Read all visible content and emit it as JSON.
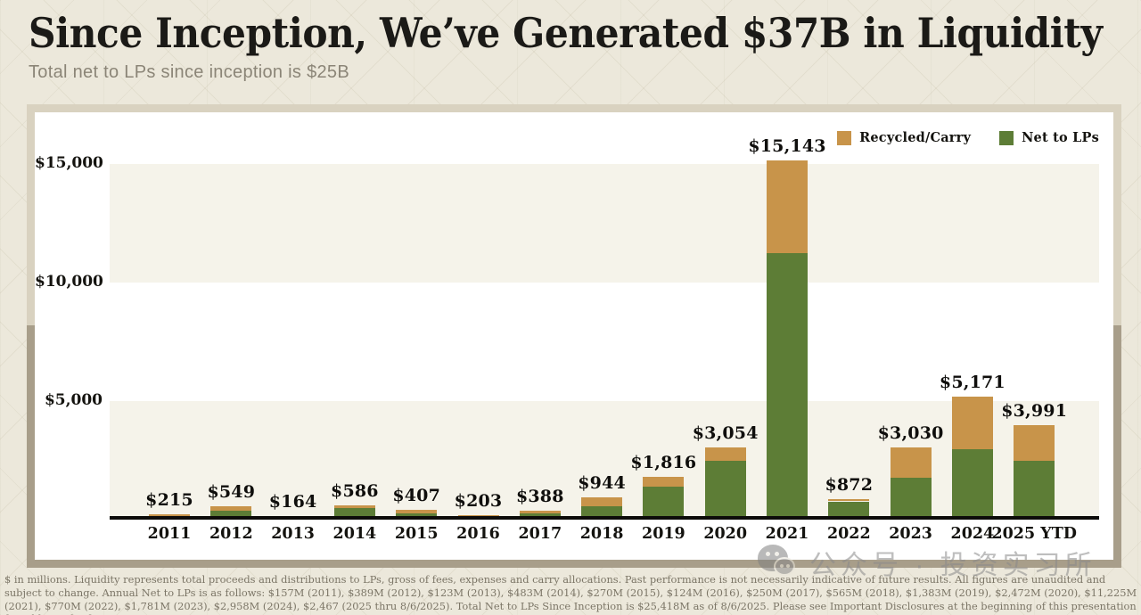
{
  "header": {
    "title": "Since Inception, We’ve Generated $37B in Liquidity",
    "subtitle": "Total net to LPs since inception is $25B"
  },
  "legend": [
    {
      "label": "Recycled/Carry",
      "color": "#c8944a"
    },
    {
      "label": "Net to LPs",
      "color": "#5d7d36"
    }
  ],
  "chart_data": {
    "type": "bar",
    "stacked": true,
    "unit": "$ in millions",
    "categories": [
      "2011",
      "2012",
      "2013",
      "2014",
      "2015",
      "2016",
      "2017",
      "2018",
      "2019",
      "2020",
      "2021",
      "2022",
      "2023",
      "2024",
      "2025 YTD"
    ],
    "series": [
      {
        "name": "Net to LPs",
        "color": "#5d7d36",
        "values": [
          157,
          389,
          123,
          483,
          270,
          124,
          250,
          565,
          1383,
          2472,
          11225,
          770,
          1781,
          2958,
          2467
        ]
      },
      {
        "name": "Recycled/Carry",
        "color": "#c8944a",
        "values": [
          58,
          160,
          41,
          103,
          137,
          79,
          138,
          379,
          433,
          582,
          3918,
          102,
          1249,
          2213,
          1524
        ]
      }
    ],
    "totals": [
      215,
      549,
      164,
      586,
      407,
      203,
      388,
      944,
      1816,
      3054,
      15143,
      872,
      3030,
      5171,
      3991
    ],
    "total_labels": [
      "$215",
      "$549",
      "$164",
      "$586",
      "$407",
      "$203",
      "$388",
      "$944",
      "$1,816",
      "$3,054",
      "$15,143",
      "$872",
      "$3,030",
      "$5,171",
      "$3,991"
    ],
    "y_ticks": [
      {
        "label": "$15,000",
        "value": 15000
      },
      {
        "label": "$10,000",
        "value": 10000
      },
      {
        "label": "$5,000",
        "value": 5000
      }
    ],
    "ylim": [
      0,
      15750
    ],
    "grid": "banded",
    "legend_position": "top-right",
    "title": "Since Inception, We’ve Generated $37B in Liquidity",
    "xlabel": "",
    "ylabel": ""
  },
  "footnote": "$ in millions. Liquidity represents total proceeds and distributions to LPs, gross of fees, expenses and carry allocations. Past performance is not necessarily indicative of future results. All figures are unaudited and subject to change. Annual Net to LPs is as follows: $157M (2011), $389M (2012), $123M (2013), $483M (2014), $270M (2015), $124M (2016), $250M (2017), $565M (2018), $1,383M (2019), $2,472M (2020), $11,225M (2021), $770M (2022), $1,781M (2023), $2,958M (2024), $2,467 (2025 thru 8/6/2025). Total Net to LPs Since Inception is $25,418M as of 8/6/2025. Please see Important Disclosures at the beginning of this presentation for additional information.",
  "watermark": {
    "text": "公众号 · 投资实习所"
  }
}
